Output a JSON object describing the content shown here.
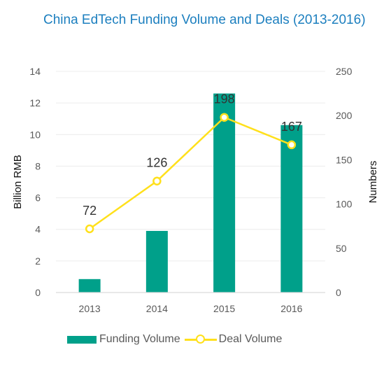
{
  "title": "China EdTech Funding Volume and Deals (2013-2016)",
  "colors": {
    "title": "#1c7fbf",
    "bar": "#00a08a",
    "line": "#ffe01b",
    "text": "#595959",
    "grid": "#ececec",
    "axis": "#d9d9d9"
  },
  "chart_data": {
    "type": "bar",
    "categories": [
      "2013",
      "2014",
      "2015",
      "2016"
    ],
    "series": [
      {
        "name": "Funding Volume",
        "type": "bar",
        "axis": "left",
        "values": [
          0.85,
          3.9,
          12.6,
          10.6
        ]
      },
      {
        "name": "Deal Volume",
        "type": "line",
        "axis": "right",
        "values": [
          72,
          126,
          198,
          167
        ],
        "data_labels": [
          "72",
          "126",
          "198",
          "167"
        ]
      }
    ],
    "ylabel_left": "Billion RMB",
    "ylim_left": [
      0,
      14
    ],
    "yticks_left": [
      "0",
      "2",
      "4",
      "6",
      "8",
      "10",
      "12",
      "14"
    ],
    "ylabel_right": "Numbers",
    "ylim_right": [
      0,
      250
    ],
    "yticks_right": [
      "0",
      "50",
      "100",
      "150",
      "200",
      "250"
    ],
    "grid": true,
    "legend_position": "bottom"
  }
}
